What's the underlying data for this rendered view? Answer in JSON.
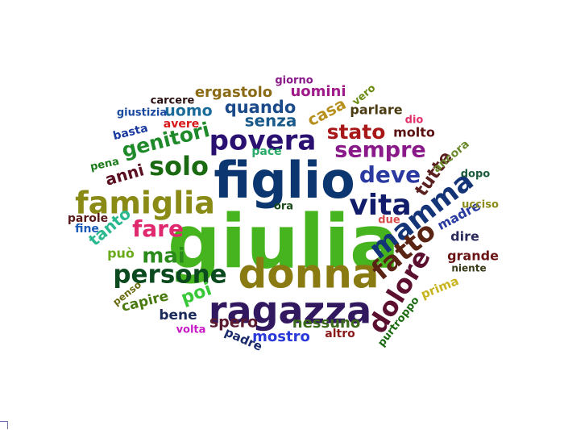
{
  "words": [
    {
      "text": "giulia",
      "color": "#46b41e"
    },
    {
      "text": "figlio",
      "color": "#0b3670"
    },
    {
      "text": "donna",
      "color": "#8a7a12"
    },
    {
      "text": "ragazza",
      "color": "#32185e"
    },
    {
      "text": "famiglia",
      "color": "#8a8a16"
    },
    {
      "text": "povera",
      "color": "#2a1070"
    },
    {
      "text": "vita",
      "color": "#111c6a"
    },
    {
      "text": "persone",
      "color": "#0b4a1e"
    },
    {
      "text": "mamma",
      "color": "#143478"
    },
    {
      "text": "fatto",
      "color": "#5a2414"
    },
    {
      "text": "dolore",
      "color": "#5c1030"
    },
    {
      "text": "solo",
      "color": "#1a6a12"
    },
    {
      "text": "fare",
      "color": "#e0286e"
    },
    {
      "text": "deve",
      "color": "#2a3aa0"
    },
    {
      "text": "sempre",
      "color": "#8a1a8a"
    },
    {
      "text": "stato",
      "color": "#a81818"
    },
    {
      "text": "genitori",
      "color": "#1e8a2a"
    },
    {
      "text": "mai",
      "color": "#2a8a1a"
    },
    {
      "text": "tutte",
      "color": "#5a2020"
    },
    {
      "text": "quando",
      "color": "#1a4a8a"
    },
    {
      "text": "senza",
      "color": "#1a5a8a"
    },
    {
      "text": "poi",
      "color": "#38c838"
    },
    {
      "text": "anni",
      "color": "#5a1020"
    },
    {
      "text": "uomo",
      "color": "#1a6a9a"
    },
    {
      "text": "uomini",
      "color": "#a01a8a"
    },
    {
      "text": "ergastolo",
      "color": "#8a6a14"
    },
    {
      "text": "casa",
      "color": "#b8901e"
    },
    {
      "text": "tanto",
      "color": "#2ab890"
    },
    {
      "text": "spero",
      "color": "#5a1a30"
    },
    {
      "text": "nessuno",
      "color": "#3a6a1a"
    },
    {
      "text": "mostro",
      "color": "#2a3ad8"
    },
    {
      "text": "capire",
      "color": "#4a7a10"
    },
    {
      "text": "può",
      "color": "#6aaa1a"
    },
    {
      "text": "molto",
      "color": "#5a1010"
    },
    {
      "text": "parlare",
      "color": "#4a3a10"
    },
    {
      "text": "ancora",
      "color": "#6a8a2a"
    },
    {
      "text": "madre",
      "color": "#2a3aa0"
    },
    {
      "text": "grande",
      "color": "#6a1414"
    },
    {
      "text": "dire",
      "color": "#2a2a5a"
    },
    {
      "text": "bene",
      "color": "#1a2a5a"
    },
    {
      "text": "pace",
      "color": "#2aaa6a"
    },
    {
      "text": "prima",
      "color": "#c8b41e"
    },
    {
      "text": "padre",
      "color": "#1a2a6a"
    },
    {
      "text": "altro",
      "color": "#8a1a1a"
    },
    {
      "text": "giorno",
      "color": "#8a1a8a"
    },
    {
      "text": "vero",
      "color": "#6a8a10"
    },
    {
      "text": "dio",
      "color": "#e0306a"
    },
    {
      "text": "avere",
      "color": "#d81818"
    },
    {
      "text": "carcere",
      "color": "#2a1010"
    },
    {
      "text": "giustizia",
      "color": "#1a4aa0"
    },
    {
      "text": "basta",
      "color": "#1a3aa0"
    },
    {
      "text": "pena",
      "color": "#1a7a1a"
    },
    {
      "text": "parole",
      "color": "#5a1a1a"
    },
    {
      "text": "fine",
      "color": "#1a5ab8"
    },
    {
      "text": "ora",
      "color": "#1a4a1a"
    },
    {
      "text": "due",
      "color": "#d84a4a"
    },
    {
      "text": "dopo",
      "color": "#1a5a3a"
    },
    {
      "text": "ucciso",
      "color": "#8a8a1a"
    },
    {
      "text": "niente",
      "color": "#3a3a1a"
    },
    {
      "text": "purtroppo",
      "color": "#1a6a10"
    },
    {
      "text": "penso",
      "color": "#6a6a10"
    },
    {
      "text": "volta",
      "color": "#c81ac8"
    }
  ]
}
